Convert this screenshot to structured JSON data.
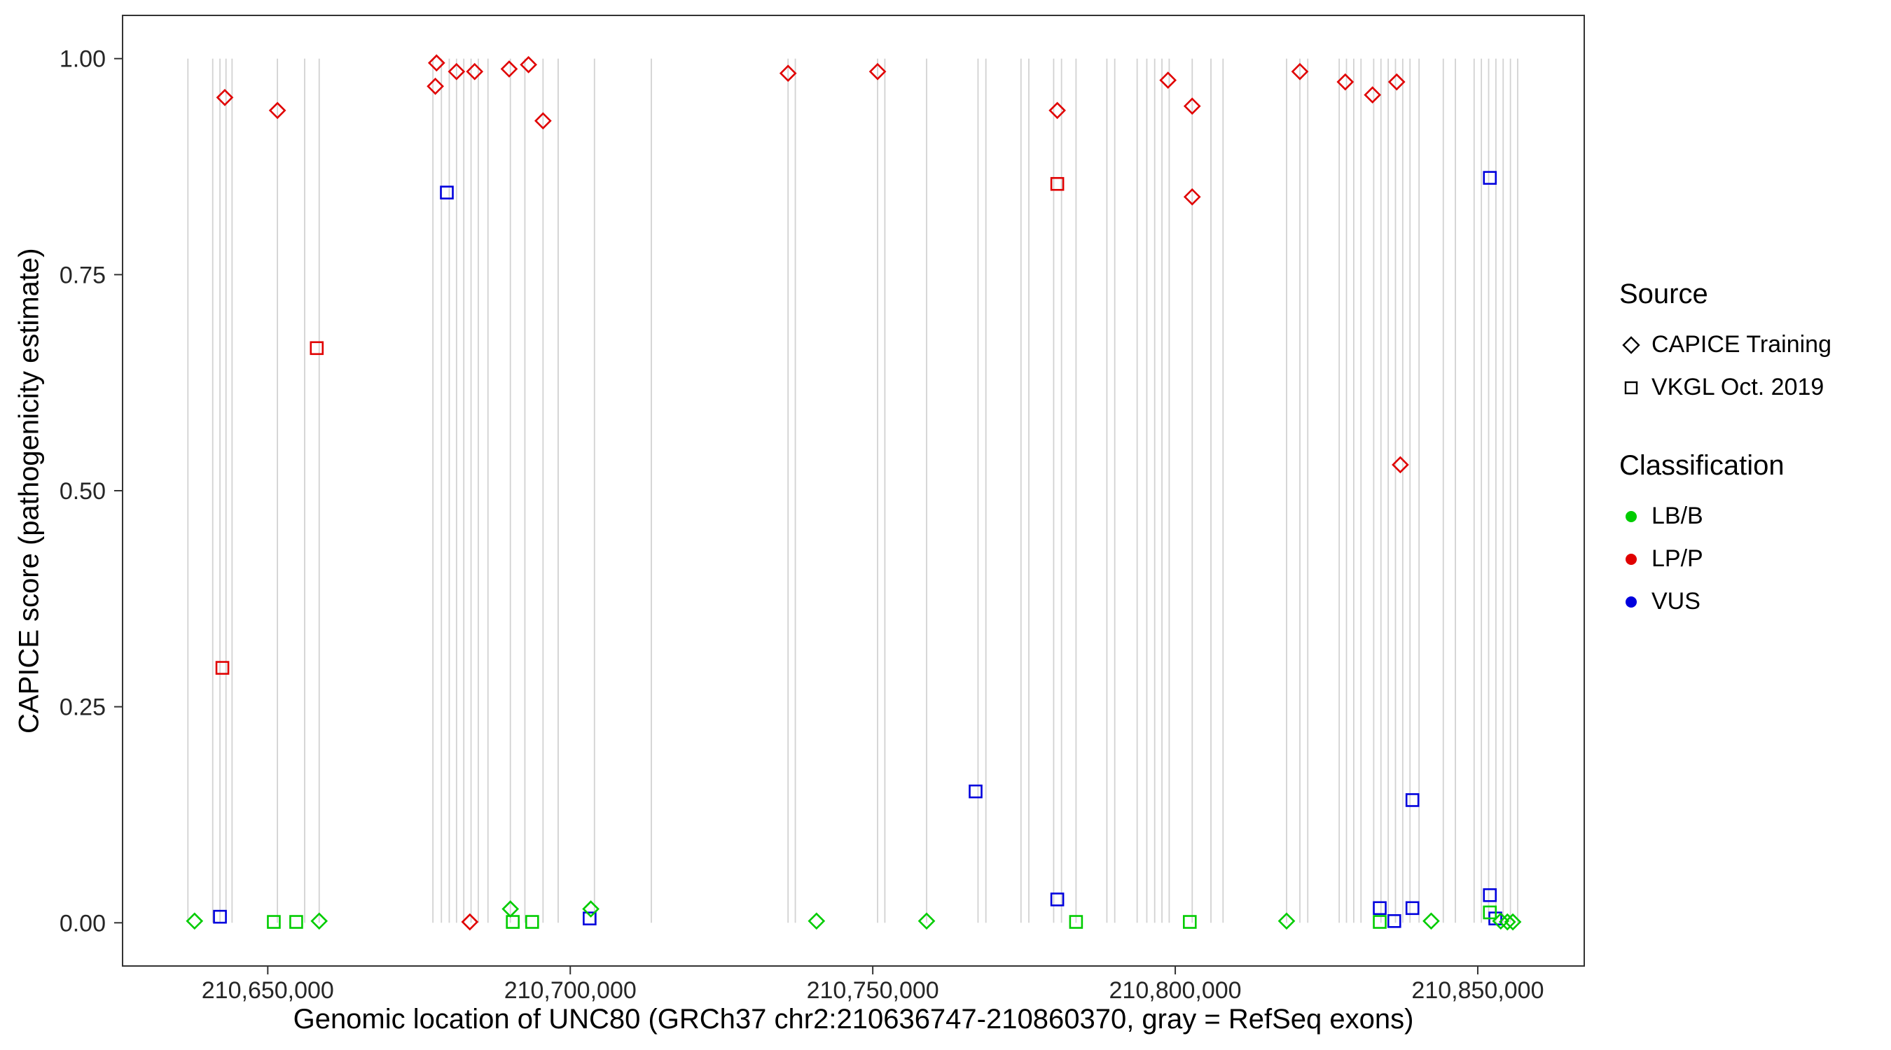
{
  "chart_data": {
    "type": "scatter",
    "title": "",
    "xlabel": "Genomic location of UNC80 (GRCh37 chr2:210636747-210860370, gray = RefSeq exons)",
    "ylabel": "CAPICE score (pathogenicity estimate)",
    "x_domain": [
      210626000,
      210867600
    ],
    "y_domain": [
      -0.05,
      1.05
    ],
    "x_ticks": [
      {
        "value": 210650000,
        "label": "210,650,000"
      },
      {
        "value": 210700000,
        "label": "210,700,000"
      },
      {
        "value": 210750000,
        "label": "210,750,000"
      },
      {
        "value": 210800000,
        "label": "210,800,000"
      },
      {
        "value": 210850000,
        "label": "210,850,000"
      }
    ],
    "y_ticks": [
      {
        "value": 0.0,
        "label": "0.00"
      },
      {
        "value": 0.25,
        "label": "0.25"
      },
      {
        "value": 0.5,
        "label": "0.50"
      },
      {
        "value": 0.75,
        "label": "0.75"
      },
      {
        "value": 1.0,
        "label": "1.00"
      }
    ],
    "classification_colors": {
      "LB/B": "#00cc00",
      "LP/P": "#e00000",
      "VUS": "#0000dd"
    },
    "source_shapes": {
      "CAPICE Training": "diamond",
      "VKGL Oct. 2019": "square"
    },
    "exon_lines": {
      "color": "#d2d2d2",
      "y_span": [
        0.0,
        1.0
      ],
      "positions": [
        210636800,
        210640900,
        210642100,
        210643100,
        210644100,
        210651600,
        210656100,
        210658500,
        210677300,
        210678700,
        210680000,
        210681200,
        210682400,
        210683600,
        210684800,
        210686400,
        210690100,
        210692500,
        210695500,
        210698000,
        210704000,
        210713400,
        210736000,
        210737200,
        210750800,
        210752000,
        210758900,
        210767400,
        210768700,
        210774500,
        210775800,
        210779900,
        210781200,
        210783600,
        210788700,
        210790000,
        210793700,
        210795300,
        210796600,
        210797800,
        210799000,
        210802800,
        210805900,
        210807900,
        210818400,
        210820600,
        210821900,
        210827100,
        210828300,
        210829500,
        210830700,
        210832800,
        210834000,
        210835200,
        210836400,
        210837600,
        210838800,
        210840300,
        210844300,
        210846300,
        210849400,
        210850600,
        210851800,
        210853000,
        210854200,
        210855400,
        210856600
      ]
    },
    "points": [
      {
        "x": 210642900,
        "y": 0.955,
        "source": "CAPICE Training",
        "classification": "LP/P"
      },
      {
        "x": 210651600,
        "y": 0.94,
        "source": "CAPICE Training",
        "classification": "LP/P"
      },
      {
        "x": 210677700,
        "y": 0.968,
        "source": "CAPICE Training",
        "classification": "LP/P"
      },
      {
        "x": 210677900,
        "y": 0.995,
        "source": "CAPICE Training",
        "classification": "LP/P"
      },
      {
        "x": 210681200,
        "y": 0.985,
        "source": "CAPICE Training",
        "classification": "LP/P"
      },
      {
        "x": 210684200,
        "y": 0.985,
        "source": "CAPICE Training",
        "classification": "LP/P"
      },
      {
        "x": 210689900,
        "y": 0.988,
        "source": "CAPICE Training",
        "classification": "LP/P"
      },
      {
        "x": 210693100,
        "y": 0.993,
        "source": "CAPICE Training",
        "classification": "LP/P"
      },
      {
        "x": 210695500,
        "y": 0.928,
        "source": "CAPICE Training",
        "classification": "LP/P"
      },
      {
        "x": 210736000,
        "y": 0.983,
        "source": "CAPICE Training",
        "classification": "LP/P"
      },
      {
        "x": 210750800,
        "y": 0.985,
        "source": "CAPICE Training",
        "classification": "LP/P"
      },
      {
        "x": 210780500,
        "y": 0.94,
        "source": "CAPICE Training",
        "classification": "LP/P"
      },
      {
        "x": 210798800,
        "y": 0.975,
        "source": "CAPICE Training",
        "classification": "LP/P"
      },
      {
        "x": 210802800,
        "y": 0.945,
        "source": "CAPICE Training",
        "classification": "LP/P"
      },
      {
        "x": 210802800,
        "y": 0.84,
        "source": "CAPICE Training",
        "classification": "LP/P"
      },
      {
        "x": 210820600,
        "y": 0.985,
        "source": "CAPICE Training",
        "classification": "LP/P"
      },
      {
        "x": 210828100,
        "y": 0.973,
        "source": "CAPICE Training",
        "classification": "LP/P"
      },
      {
        "x": 210832600,
        "y": 0.958,
        "source": "CAPICE Training",
        "classification": "LP/P"
      },
      {
        "x": 210836600,
        "y": 0.973,
        "source": "CAPICE Training",
        "classification": "LP/P"
      },
      {
        "x": 210837200,
        "y": 0.53,
        "source": "CAPICE Training",
        "classification": "LP/P"
      },
      {
        "x": 210683400,
        "y": 0.001,
        "source": "CAPICE Training",
        "classification": "LP/P"
      },
      {
        "x": 210642500,
        "y": 0.295,
        "source": "VKGL Oct. 2019",
        "classification": "LP/P"
      },
      {
        "x": 210658100,
        "y": 0.665,
        "source": "VKGL Oct. 2019",
        "classification": "LP/P"
      },
      {
        "x": 210780500,
        "y": 0.855,
        "source": "VKGL Oct. 2019",
        "classification": "LP/P"
      },
      {
        "x": 210679600,
        "y": 0.845,
        "source": "VKGL Oct. 2019",
        "classification": "VUS"
      },
      {
        "x": 210852000,
        "y": 0.862,
        "source": "VKGL Oct. 2019",
        "classification": "VUS"
      },
      {
        "x": 210767000,
        "y": 0.152,
        "source": "VKGL Oct. 2019",
        "classification": "VUS"
      },
      {
        "x": 210839200,
        "y": 0.142,
        "source": "VKGL Oct. 2019",
        "classification": "VUS"
      },
      {
        "x": 210780500,
        "y": 0.027,
        "source": "VKGL Oct. 2019",
        "classification": "VUS"
      },
      {
        "x": 210833800,
        "y": 0.017,
        "source": "VKGL Oct. 2019",
        "classification": "VUS"
      },
      {
        "x": 210839200,
        "y": 0.017,
        "source": "VKGL Oct. 2019",
        "classification": "VUS"
      },
      {
        "x": 210852000,
        "y": 0.032,
        "source": "VKGL Oct. 2019",
        "classification": "VUS"
      },
      {
        "x": 210642100,
        "y": 0.007,
        "source": "VKGL Oct. 2019",
        "classification": "VUS"
      },
      {
        "x": 210703200,
        "y": 0.005,
        "source": "VKGL Oct. 2019",
        "classification": "VUS"
      },
      {
        "x": 210836200,
        "y": 0.002,
        "source": "VKGL Oct. 2019",
        "classification": "VUS"
      },
      {
        "x": 210852900,
        "y": 0.005,
        "source": "VKGL Oct. 2019",
        "classification": "VUS"
      },
      {
        "x": 210637900,
        "y": 0.002,
        "source": "CAPICE Training",
        "classification": "LB/B"
      },
      {
        "x": 210658500,
        "y": 0.002,
        "source": "CAPICE Training",
        "classification": "LB/B"
      },
      {
        "x": 210690100,
        "y": 0.016,
        "source": "CAPICE Training",
        "classification": "LB/B"
      },
      {
        "x": 210703400,
        "y": 0.016,
        "source": "CAPICE Training",
        "classification": "LB/B"
      },
      {
        "x": 210740700,
        "y": 0.002,
        "source": "CAPICE Training",
        "classification": "LB/B"
      },
      {
        "x": 210758900,
        "y": 0.002,
        "source": "CAPICE Training",
        "classification": "LB/B"
      },
      {
        "x": 210818400,
        "y": 0.002,
        "source": "CAPICE Training",
        "classification": "LB/B"
      },
      {
        "x": 210842300,
        "y": 0.002,
        "source": "CAPICE Training",
        "classification": "LB/B"
      },
      {
        "x": 210853800,
        "y": 0.002,
        "source": "CAPICE Training",
        "classification": "LB/B"
      },
      {
        "x": 210854900,
        "y": 0.001,
        "source": "CAPICE Training",
        "classification": "LB/B"
      },
      {
        "x": 210855800,
        "y": 0.001,
        "source": "CAPICE Training",
        "classification": "LB/B"
      },
      {
        "x": 210651000,
        "y": 0.001,
        "source": "VKGL Oct. 2019",
        "classification": "LB/B"
      },
      {
        "x": 210654700,
        "y": 0.001,
        "source": "VKGL Oct. 2019",
        "classification": "LB/B"
      },
      {
        "x": 210690500,
        "y": 0.001,
        "source": "VKGL Oct. 2019",
        "classification": "LB/B"
      },
      {
        "x": 210693700,
        "y": 0.001,
        "source": "VKGL Oct. 2019",
        "classification": "LB/B"
      },
      {
        "x": 210783600,
        "y": 0.001,
        "source": "VKGL Oct. 2019",
        "classification": "LB/B"
      },
      {
        "x": 210802400,
        "y": 0.001,
        "source": "VKGL Oct. 2019",
        "classification": "LB/B"
      },
      {
        "x": 210833800,
        "y": 0.001,
        "source": "VKGL Oct. 2019",
        "classification": "LB/B"
      },
      {
        "x": 210852000,
        "y": 0.012,
        "source": "VKGL Oct. 2019",
        "classification": "LB/B"
      }
    ]
  },
  "legend": {
    "source": {
      "title": "Source",
      "items": [
        {
          "label": "CAPICE Training",
          "shape": "diamond"
        },
        {
          "label": "VKGL Oct. 2019",
          "shape": "square"
        }
      ]
    },
    "classification": {
      "title": "Classification",
      "items": [
        {
          "label": "LB/B",
          "color": "#00cc00"
        },
        {
          "label": "LP/P",
          "color": "#e00000"
        },
        {
          "label": "VUS",
          "color": "#0000dd"
        }
      ]
    }
  }
}
